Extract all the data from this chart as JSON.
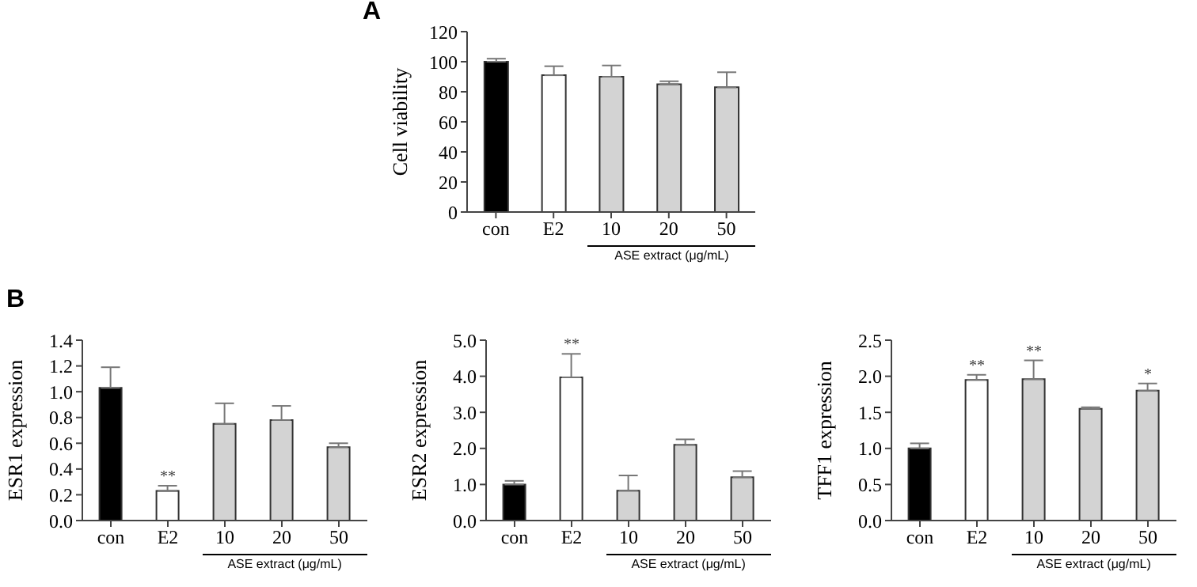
{
  "chart_data": [
    {
      "type": "bar",
      "title": "A",
      "ylabel": "Cell viability",
      "xlabel": "ASE extract (μg/mL)",
      "categories": [
        "con",
        "E2",
        "10",
        "20",
        "50"
      ],
      "values": [
        100,
        91,
        90,
        85,
        83
      ],
      "errors": [
        [
          100,
          102
        ],
        [
          91,
          97
        ],
        [
          90,
          97.5
        ],
        [
          85,
          87
        ],
        [
          83,
          93
        ]
      ],
      "colors": [
        "#000000",
        "#ffffff",
        "#d3d3d3",
        "#d3d3d3",
        "#d3d3d3"
      ],
      "ylim": [
        0,
        120
      ],
      "yticks": [
        0,
        20,
        40,
        60,
        80,
        100,
        120
      ],
      "grid": false,
      "legend": false
    },
    {
      "type": "bar",
      "title": "B",
      "ylabel": "ESR1 expression",
      "xlabel": "ASE extract (μg/mL)",
      "categories": [
        "con",
        "E2",
        "10",
        "20",
        "50"
      ],
      "values": [
        1.03,
        0.23,
        0.75,
        0.78,
        0.57
      ],
      "errors": [
        [
          1.03,
          1.19
        ],
        [
          0.23,
          0.27
        ],
        [
          0.75,
          0.91
        ],
        [
          0.78,
          0.89
        ],
        [
          0.57,
          0.6
        ]
      ],
      "colors": [
        "#000000",
        "#ffffff",
        "#d3d3d3",
        "#d3d3d3",
        "#d3d3d3"
      ],
      "ylim": [
        0,
        1.4
      ],
      "yticks": [
        {
          "value": 0,
          "label": "0.0"
        },
        {
          "value": 0.2,
          "label": "0.2"
        },
        {
          "value": 0.4,
          "label": "0.4"
        },
        {
          "value": 0.6,
          "label": "0.6"
        },
        {
          "value": 0.8,
          "label": "0.8"
        },
        {
          "value": 1,
          "label": "1.0"
        },
        {
          "value": 1.2,
          "label": "1.2"
        },
        {
          "value": 1.4,
          "label": "1.4"
        }
      ],
      "value_labels": [
        null,
        "**",
        null,
        null,
        null
      ],
      "grid": false,
      "legend": false
    },
    {
      "type": "bar",
      "ylabel": "ESR2 expression",
      "xlabel": "ASE extract (μg/mL)",
      "categories": [
        "con",
        "E2",
        "10",
        "20",
        "50"
      ],
      "values": [
        1.0,
        3.97,
        0.83,
        2.1,
        1.2
      ],
      "errors": [
        [
          1.0,
          1.1
        ],
        [
          3.97,
          4.62
        ],
        [
          0.83,
          1.25
        ],
        [
          2.1,
          2.25
        ],
        [
          1.2,
          1.37
        ]
      ],
      "colors": [
        "#000000",
        "#ffffff",
        "#d3d3d3",
        "#d3d3d3",
        "#d3d3d3"
      ],
      "ylim": [
        0,
        5
      ],
      "yticks": [
        {
          "value": 0,
          "label": "0.0"
        },
        {
          "value": 1,
          "label": "1.0"
        },
        {
          "value": 2,
          "label": "2.0"
        },
        {
          "value": 3,
          "label": "3.0"
        },
        {
          "value": 4,
          "label": "4.0"
        },
        {
          "value": 5,
          "label": "5.0"
        }
      ],
      "value_labels": [
        null,
        "**",
        null,
        null,
        null
      ],
      "grid": false,
      "legend": false
    },
    {
      "type": "bar",
      "ylabel": "TFF1 expression",
      "xlabel": "ASE extract (μg/mL)",
      "categories": [
        "con",
        "E2",
        "10",
        "20",
        "50"
      ],
      "values": [
        1.0,
        1.95,
        1.96,
        1.55,
        1.8
      ],
      "errors": [
        [
          1.0,
          1.07
        ],
        [
          1.95,
          2.02
        ],
        [
          1.96,
          2.22
        ],
        [
          1.55,
          1.57
        ],
        [
          1.8,
          1.9
        ]
      ],
      "colors": [
        "#000000",
        "#ffffff",
        "#d3d3d3",
        "#d3d3d3",
        "#d3d3d3"
      ],
      "ylim": [
        0,
        2.5
      ],
      "yticks": [
        {
          "value": 0,
          "label": "0.0"
        },
        {
          "value": 0.5,
          "label": "0.5"
        },
        {
          "value": 1,
          "label": "1.0"
        },
        {
          "value": 1.5,
          "label": "1.5"
        },
        {
          "value": 2,
          "label": "2.0"
        },
        {
          "value": 2.5,
          "label": "2.5"
        }
      ],
      "value_labels": [
        null,
        "**",
        "**",
        null,
        "*"
      ],
      "grid": false,
      "legend": false
    }
  ]
}
